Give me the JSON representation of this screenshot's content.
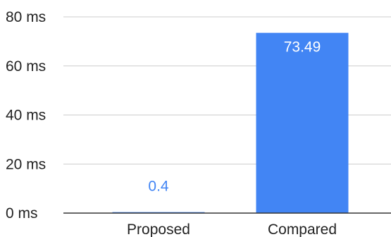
{
  "chart_data": {
    "type": "bar",
    "categories": [
      "Proposed",
      "Compared"
    ],
    "values": [
      0.4,
      73.49
    ],
    "data_labels": [
      "0.4",
      "73.49"
    ],
    "ylim": [
      0,
      80
    ],
    "y_ticks": [
      0,
      20,
      40,
      60,
      80
    ],
    "y_tick_labels": [
      "0 ms",
      "20 ms",
      "40 ms",
      "60 ms",
      "80 ms"
    ],
    "title": "",
    "xlabel": "",
    "ylabel": "",
    "grid": true,
    "legend": "none",
    "colors": {
      "bar": "#4285f4",
      "gridline": "#cccccc",
      "axis": "#333333",
      "label_outside": "#4285f4",
      "label_inside": "#ffffff"
    }
  }
}
